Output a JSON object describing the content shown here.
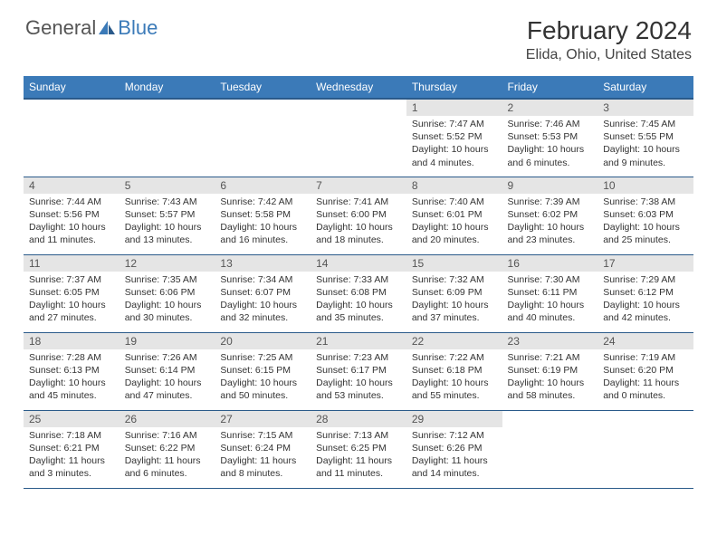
{
  "brand": {
    "general": "General",
    "blue": "Blue"
  },
  "title": "February 2024",
  "location": "Elida, Ohio, United States",
  "colors": {
    "header_bg": "#3b7ab8",
    "header_border": "#2a5a8a",
    "daynum_bg": "#e5e5e5"
  },
  "weekdays": [
    "Sunday",
    "Monday",
    "Tuesday",
    "Wednesday",
    "Thursday",
    "Friday",
    "Saturday"
  ],
  "weeks": [
    [
      null,
      null,
      null,
      null,
      {
        "n": "1",
        "sr": "7:47 AM",
        "ss": "5:52 PM",
        "dl": "10 hours and 4 minutes."
      },
      {
        "n": "2",
        "sr": "7:46 AM",
        "ss": "5:53 PM",
        "dl": "10 hours and 6 minutes."
      },
      {
        "n": "3",
        "sr": "7:45 AM",
        "ss": "5:55 PM",
        "dl": "10 hours and 9 minutes."
      }
    ],
    [
      {
        "n": "4",
        "sr": "7:44 AM",
        "ss": "5:56 PM",
        "dl": "10 hours and 11 minutes."
      },
      {
        "n": "5",
        "sr": "7:43 AM",
        "ss": "5:57 PM",
        "dl": "10 hours and 13 minutes."
      },
      {
        "n": "6",
        "sr": "7:42 AM",
        "ss": "5:58 PM",
        "dl": "10 hours and 16 minutes."
      },
      {
        "n": "7",
        "sr": "7:41 AM",
        "ss": "6:00 PM",
        "dl": "10 hours and 18 minutes."
      },
      {
        "n": "8",
        "sr": "7:40 AM",
        "ss": "6:01 PM",
        "dl": "10 hours and 20 minutes."
      },
      {
        "n": "9",
        "sr": "7:39 AM",
        "ss": "6:02 PM",
        "dl": "10 hours and 23 minutes."
      },
      {
        "n": "10",
        "sr": "7:38 AM",
        "ss": "6:03 PM",
        "dl": "10 hours and 25 minutes."
      }
    ],
    [
      {
        "n": "11",
        "sr": "7:37 AM",
        "ss": "6:05 PM",
        "dl": "10 hours and 27 minutes."
      },
      {
        "n": "12",
        "sr": "7:35 AM",
        "ss": "6:06 PM",
        "dl": "10 hours and 30 minutes."
      },
      {
        "n": "13",
        "sr": "7:34 AM",
        "ss": "6:07 PM",
        "dl": "10 hours and 32 minutes."
      },
      {
        "n": "14",
        "sr": "7:33 AM",
        "ss": "6:08 PM",
        "dl": "10 hours and 35 minutes."
      },
      {
        "n": "15",
        "sr": "7:32 AM",
        "ss": "6:09 PM",
        "dl": "10 hours and 37 minutes."
      },
      {
        "n": "16",
        "sr": "7:30 AM",
        "ss": "6:11 PM",
        "dl": "10 hours and 40 minutes."
      },
      {
        "n": "17",
        "sr": "7:29 AM",
        "ss": "6:12 PM",
        "dl": "10 hours and 42 minutes."
      }
    ],
    [
      {
        "n": "18",
        "sr": "7:28 AM",
        "ss": "6:13 PM",
        "dl": "10 hours and 45 minutes."
      },
      {
        "n": "19",
        "sr": "7:26 AM",
        "ss": "6:14 PM",
        "dl": "10 hours and 47 minutes."
      },
      {
        "n": "20",
        "sr": "7:25 AM",
        "ss": "6:15 PM",
        "dl": "10 hours and 50 minutes."
      },
      {
        "n": "21",
        "sr": "7:23 AM",
        "ss": "6:17 PM",
        "dl": "10 hours and 53 minutes."
      },
      {
        "n": "22",
        "sr": "7:22 AM",
        "ss": "6:18 PM",
        "dl": "10 hours and 55 minutes."
      },
      {
        "n": "23",
        "sr": "7:21 AM",
        "ss": "6:19 PM",
        "dl": "10 hours and 58 minutes."
      },
      {
        "n": "24",
        "sr": "7:19 AM",
        "ss": "6:20 PM",
        "dl": "11 hours and 0 minutes."
      }
    ],
    [
      {
        "n": "25",
        "sr": "7:18 AM",
        "ss": "6:21 PM",
        "dl": "11 hours and 3 minutes."
      },
      {
        "n": "26",
        "sr": "7:16 AM",
        "ss": "6:22 PM",
        "dl": "11 hours and 6 minutes."
      },
      {
        "n": "27",
        "sr": "7:15 AM",
        "ss": "6:24 PM",
        "dl": "11 hours and 8 minutes."
      },
      {
        "n": "28",
        "sr": "7:13 AM",
        "ss": "6:25 PM",
        "dl": "11 hours and 11 minutes."
      },
      {
        "n": "29",
        "sr": "7:12 AM",
        "ss": "6:26 PM",
        "dl": "11 hours and 14 minutes."
      },
      null,
      null
    ]
  ],
  "labels": {
    "sunrise": "Sunrise:",
    "sunset": "Sunset:",
    "daylight": "Daylight:"
  }
}
